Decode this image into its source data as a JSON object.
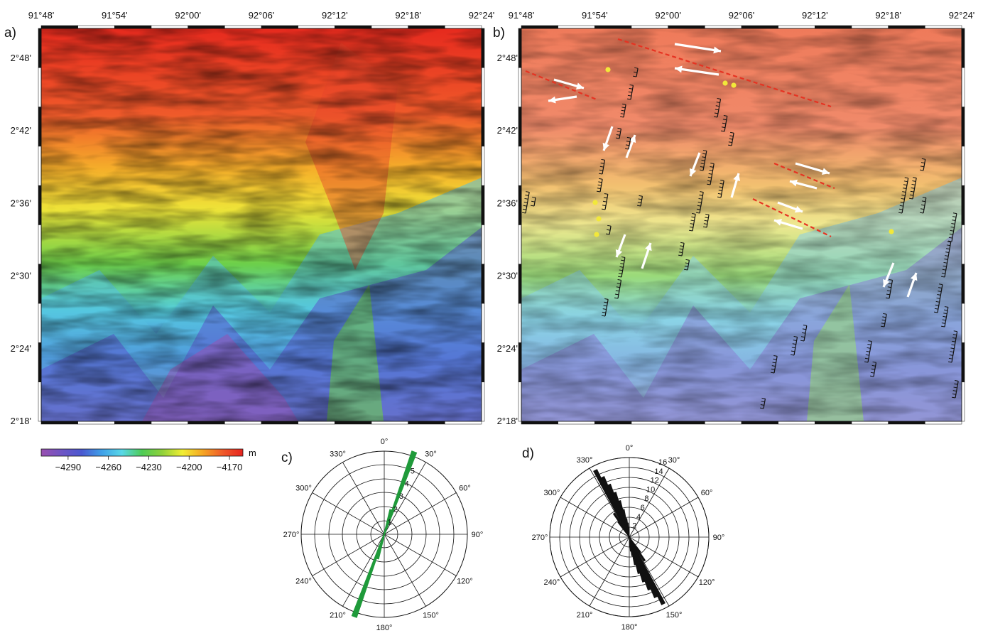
{
  "panels": {
    "a": {
      "label": "a)"
    },
    "b": {
      "label": "b)"
    },
    "c": {
      "label": "c)"
    },
    "d": {
      "label": "d)"
    }
  },
  "map": {
    "lon_ticks": [
      "91°48'",
      "91°54'",
      "92°00'",
      "92°06'",
      "92°12'",
      "92°18'",
      "92°24'"
    ],
    "lat_ticks": [
      "2°48'",
      "2°42'",
      "2°36'",
      "2°30'",
      "2°24'",
      "2°18'"
    ],
    "lon_range": [
      91.8,
      92.4
    ],
    "lat_range": [
      2.3,
      2.82
    ]
  },
  "colorbar": {
    "unit": "m",
    "ticks": [
      "−4290",
      "−4260",
      "−4230",
      "−4200",
      "−4170"
    ],
    "range": [
      -4310,
      -4160
    ],
    "colors": [
      "#9a4fb0",
      "#6f55c4",
      "#4a58d0",
      "#3fa0e8",
      "#58d8e8",
      "#4ecb55",
      "#8fd13a",
      "#f1ee34",
      "#f5a623",
      "#ef5a2a",
      "#e6231f"
    ]
  },
  "rose_c": {
    "angle_labels": [
      "0°",
      "30°",
      "60°",
      "90°",
      "120°",
      "150°",
      "180°",
      "210°",
      "240°",
      "270°",
      "300°",
      "330°"
    ],
    "radial_labels": [
      "1",
      "2",
      "3",
      "4",
      "5"
    ],
    "max": 6,
    "color": "#1f9a3a",
    "bins": [
      {
        "az": 20,
        "value": 6.3
      },
      {
        "az": 15,
        "value": 1.8
      }
    ]
  },
  "rose_d": {
    "angle_labels": [
      "0°",
      "30°",
      "60°",
      "90°",
      "120°",
      "150°",
      "180°",
      "210°",
      "240°",
      "270°",
      "300°",
      "330°"
    ],
    "radial_labels": [
      "2",
      "4",
      "6",
      "8",
      "10",
      "12",
      "14",
      "16"
    ],
    "max": 17,
    "color": "#111111",
    "bins": [
      {
        "az": 333,
        "value": 16
      },
      {
        "az": 336,
        "value": 14
      },
      {
        "az": 339,
        "value": 12
      },
      {
        "az": 342,
        "value": 10
      },
      {
        "az": 345,
        "value": 8
      },
      {
        "az": 348,
        "value": 6
      },
      {
        "az": 351,
        "value": 4
      },
      {
        "az": 354,
        "value": 3
      },
      {
        "az": 357,
        "value": 2
      },
      {
        "az": 327,
        "value": 6
      },
      {
        "az": 324,
        "value": 4
      }
    ]
  }
}
